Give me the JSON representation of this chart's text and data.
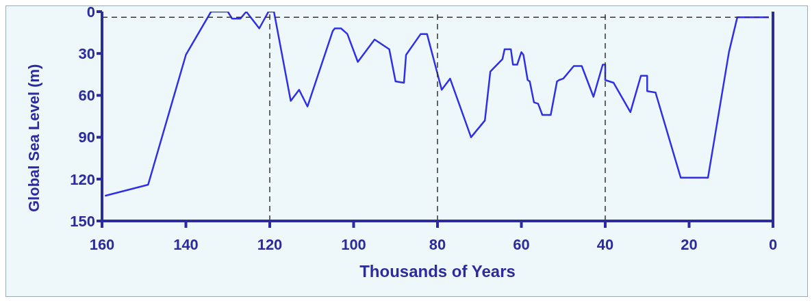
{
  "chart_data": {
    "type": "line",
    "xlabel": "Thousands of Years",
    "ylabel": "Global Sea Level (m)",
    "x": [
      159.3,
      149,
      140,
      134,
      130,
      129,
      127,
      125.6,
      122.5,
      120.3,
      119,
      115,
      113,
      111,
      105,
      104.5,
      103,
      101.5,
      99,
      95,
      91.5,
      90,
      88,
      87.5,
      84,
      82.5,
      79,
      77,
      72,
      68.7,
      67.4,
      64.5,
      64,
      62.5,
      62,
      61,
      60,
      59.5,
      58.5,
      58,
      57,
      56,
      55,
      53,
      51.5,
      51,
      50,
      47.5,
      45.6,
      42.8,
      40.6,
      40,
      40,
      38,
      34,
      31.5,
      30,
      30,
      28,
      22,
      15.5,
      10.5,
      8.5,
      1
    ],
    "series": [
      {
        "color": "#2f2fe8",
        "values": [
          132,
          124,
          31,
          0,
          0,
          5,
          5,
          0,
          12,
          0,
          0,
          64,
          56,
          68,
          14,
          12,
          12,
          16,
          36,
          20,
          27,
          50,
          51,
          31,
          16,
          16,
          56,
          48,
          90,
          78,
          43,
          34,
          27,
          27,
          38,
          38,
          29,
          31,
          49,
          50,
          65,
          66,
          74,
          74,
          50,
          49,
          48,
          39,
          39,
          61,
          38,
          38,
          49,
          51,
          72,
          46,
          46,
          57,
          58,
          119,
          119,
          29,
          4,
          4
        ]
      }
    ],
    "xlim": [
      160,
      0
    ],
    "xticks": [
      160,
      140,
      120,
      100,
      80,
      60,
      40,
      20,
      0
    ],
    "ylim": [
      150,
      0
    ],
    "yticks": [
      0,
      30,
      60,
      90,
      120,
      150
    ],
    "ref_lines": [
      {
        "axis": "x",
        "value": 120,
        "line_style": "dashed",
        "color": "#333333"
      },
      {
        "axis": "x",
        "value": 80,
        "line_style": "dashed",
        "color": "#333333"
      },
      {
        "axis": "x",
        "value": 40,
        "line_style": "dashed",
        "color": "#333333"
      },
      {
        "axis": "y",
        "value": 4,
        "line_style": "dashed",
        "color": "#333333"
      }
    ],
    "grid": false,
    "legend": false,
    "marker": "none",
    "line_style": "solid"
  }
}
